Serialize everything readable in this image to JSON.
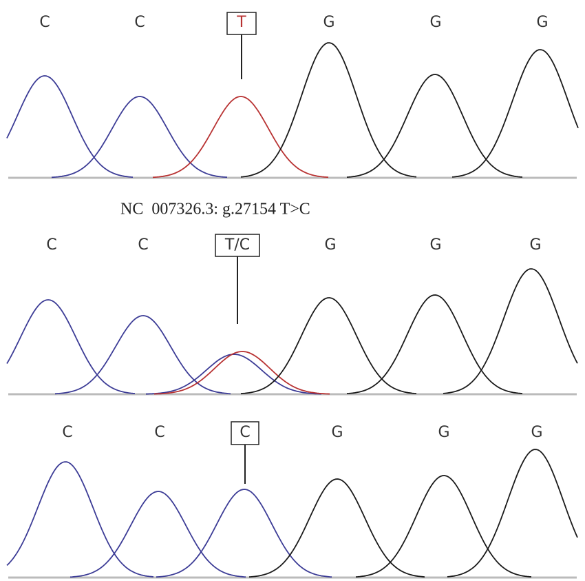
{
  "panels": [
    {
      "bases": [
        "C",
        "C",
        "T",
        "G",
        "G",
        "G"
      ]
    },
    {
      "bases": [
        "C",
        "C",
        "T/C",
        "G",
        "G",
        "G"
      ]
    },
    {
      "bases": [
        "C",
        "C",
        "C",
        "G",
        "G",
        "G"
      ]
    }
  ],
  "caption": "NC  007326.3: g.27154 T>C"
}
